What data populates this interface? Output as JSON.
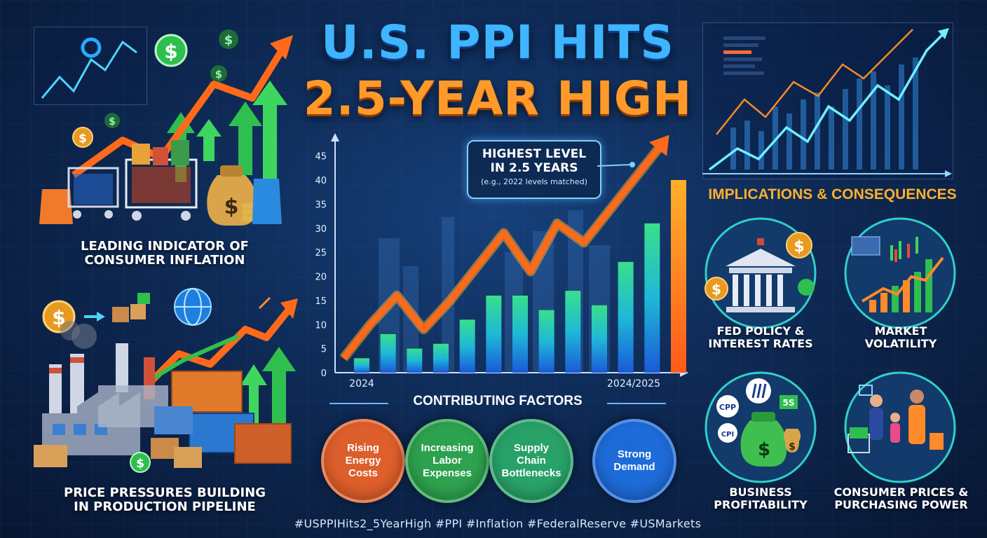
{
  "title": {
    "line1": "U.S. PPI HITS",
    "line2": "2.5-YEAR HIGH"
  },
  "left_top_caption": [
    "LEADING INDICATOR OF",
    "CONSUMER INFLATION"
  ],
  "left_bottom_caption": [
    "PRICE PRESSURES BUILDING",
    "IN PRODUCTION PIPELINE"
  ],
  "callout": {
    "line1": "HIGHEST LEVEL",
    "line2": "IN 2.5 YEARS",
    "line3": "(e.g., 2022 levels matched)"
  },
  "chart_data": {
    "type": "bar",
    "categories": [
      "2024",
      "",
      "",
      "",
      "",
      "",
      "",
      "",
      "",
      "",
      "",
      "",
      "2024/2025"
    ],
    "values": [
      3,
      8,
      5,
      6,
      11,
      16,
      16,
      13,
      17,
      14,
      23,
      31,
      40
    ],
    "trend_values": [
      3,
      10,
      16,
      9,
      15,
      22,
      29,
      21,
      31,
      27,
      34,
      41,
      48
    ],
    "yticks": [
      0,
      5,
      10,
      15,
      20,
      25,
      30,
      35,
      40,
      45
    ],
    "ylim": [
      0,
      48
    ],
    "xlabel_start": "2024",
    "xlabel_end": "2024/2025"
  },
  "contributing_factors": {
    "title": "CONTRIBUTING FACTORS",
    "items": [
      {
        "lines": [
          "Rising",
          "Energy",
          "Costs"
        ],
        "color": "#e8622a"
      },
      {
        "lines": [
          "Increasing",
          "Labor",
          "Expenses"
        ],
        "color": "#2fa84f"
      },
      {
        "lines": [
          "Supply",
          "Chain",
          "Bottlenecks"
        ],
        "color": "#2aa86a"
      },
      {
        "lines": [
          "Strong",
          "Demand"
        ],
        "color": "#1f6fe0"
      }
    ]
  },
  "implications": {
    "title": "IMPLICATIONS & CONSEQUENCES",
    "items": [
      {
        "lines": [
          "FED POLICY &",
          "INTEREST RATES"
        ]
      },
      {
        "lines": [
          "MARKET",
          "VOLATILITY"
        ]
      },
      {
        "lines": [
          "BUSINESS",
          "PROFITABILITY"
        ]
      },
      {
        "lines": [
          "CONSUMER PRICES &",
          "PURCHASING POWER"
        ]
      }
    ],
    "icon_labels": {
      "cpp": "CPP",
      "cpi": "CPI",
      "ss": "5S"
    }
  },
  "dollar_sign": "$",
  "hashtags": "#USPPIHits2_5YearHigh #PPI #Inflation #FederalReserve #USMarkets",
  "colors": {
    "title_blue": "#3fb4ff",
    "title_orange": "#ff9a2a",
    "trend": "#ff6a1a",
    "bar": "#22c0d8"
  }
}
